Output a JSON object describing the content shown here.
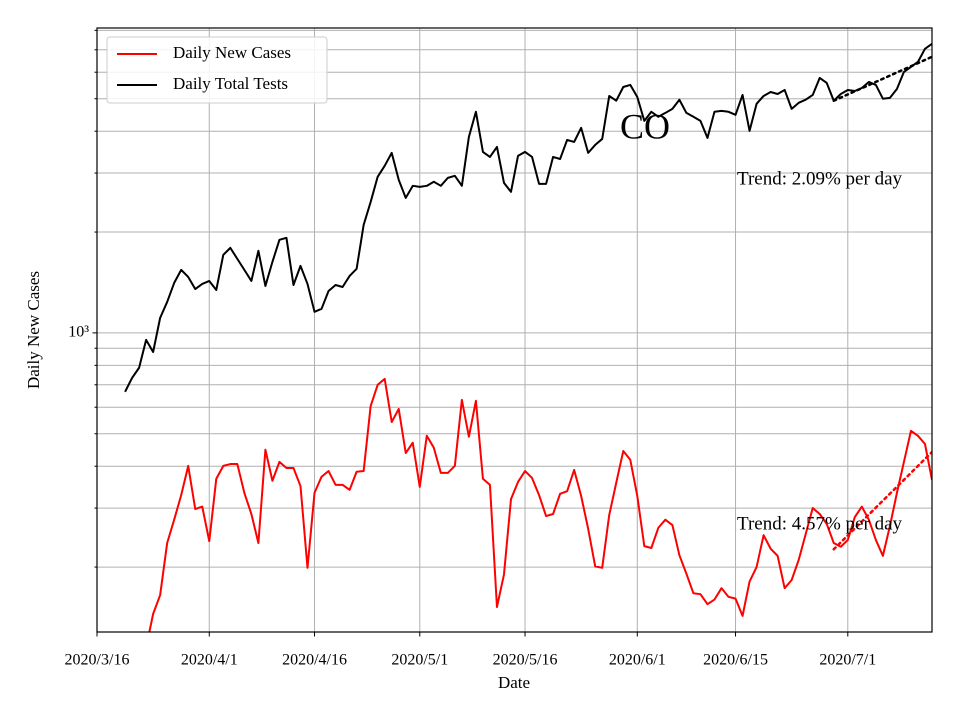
{
  "chart_data": {
    "type": "line",
    "xlabel": "Date",
    "ylabel": "Daily New Cases",
    "log_y": true,
    "grid": true,
    "legend": "upper left",
    "xlim": [
      "2020-03-16",
      "2020-07-13"
    ],
    "xticks": [
      {
        "value": "2020-03-16",
        "label": "2020/3/16"
      },
      {
        "value": "2020-04-01",
        "label": "2020/4/1"
      },
      {
        "value": "2020-04-16",
        "label": "2020/4/16"
      },
      {
        "value": "2020-05-01",
        "label": "2020/5/1"
      },
      {
        "value": "2020-05-16",
        "label": "2020/5/16"
      },
      {
        "value": "2020-06-01",
        "label": "2020/6/1"
      },
      {
        "value": "2020-06-15",
        "label": "2020/6/15"
      },
      {
        "value": "2020-07-01",
        "label": "2020/7/1"
      }
    ],
    "ylim": [
      128,
      8130
    ],
    "yticks": [
      {
        "value": 1000,
        "label": "10³"
      }
    ],
    "yminorticks": [
      200,
      300,
      400,
      500,
      600,
      700,
      800,
      900,
      2000,
      3000,
      4000,
      5000,
      6000,
      7000,
      8000
    ],
    "x": [
      "2020-03-20",
      "2020-03-21",
      "2020-03-22",
      "2020-03-23",
      "2020-03-24",
      "2020-03-25",
      "2020-03-26",
      "2020-03-27",
      "2020-03-28",
      "2020-03-29",
      "2020-03-30",
      "2020-03-31",
      "2020-04-01",
      "2020-04-02",
      "2020-04-03",
      "2020-04-04",
      "2020-04-05",
      "2020-04-06",
      "2020-04-07",
      "2020-04-08",
      "2020-04-09",
      "2020-04-10",
      "2020-04-11",
      "2020-04-12",
      "2020-04-13",
      "2020-04-14",
      "2020-04-15",
      "2020-04-16",
      "2020-04-17",
      "2020-04-18",
      "2020-04-19",
      "2020-04-20",
      "2020-04-21",
      "2020-04-22",
      "2020-04-23",
      "2020-04-24",
      "2020-04-25",
      "2020-04-26",
      "2020-04-27",
      "2020-04-28",
      "2020-04-29",
      "2020-04-30",
      "2020-05-01",
      "2020-05-02",
      "2020-05-03",
      "2020-05-04",
      "2020-05-05",
      "2020-05-06",
      "2020-05-07",
      "2020-05-08",
      "2020-05-09",
      "2020-05-10",
      "2020-05-11",
      "2020-05-12",
      "2020-05-13",
      "2020-05-14",
      "2020-05-15",
      "2020-05-16",
      "2020-05-17",
      "2020-05-18",
      "2020-05-19",
      "2020-05-20",
      "2020-05-21",
      "2020-05-22",
      "2020-05-23",
      "2020-05-24",
      "2020-05-25",
      "2020-05-26",
      "2020-05-27",
      "2020-05-28",
      "2020-05-29",
      "2020-05-30",
      "2020-05-31",
      "2020-06-01",
      "2020-06-02",
      "2020-06-03",
      "2020-06-04",
      "2020-06-05",
      "2020-06-06",
      "2020-06-07",
      "2020-06-08",
      "2020-06-09",
      "2020-06-10",
      "2020-06-11",
      "2020-06-12",
      "2020-06-13",
      "2020-06-14",
      "2020-06-15",
      "2020-06-16",
      "2020-06-17",
      "2020-06-18",
      "2020-06-19",
      "2020-06-20",
      "2020-06-21",
      "2020-06-22",
      "2020-06-23",
      "2020-06-24",
      "2020-06-25",
      "2020-06-26",
      "2020-06-27",
      "2020-06-28",
      "2020-06-29",
      "2020-06-30",
      "2020-07-01",
      "2020-07-02",
      "2020-07-03",
      "2020-07-04",
      "2020-07-05",
      "2020-07-06",
      "2020-07-07",
      "2020-07-08",
      "2020-07-09",
      "2020-07-10",
      "2020-07-11",
      "2020-07-12",
      "2020-07-13"
    ],
    "series": [
      {
        "name": "Daily New Cases",
        "color": "#ff0000",
        "values": [
          null,
          null,
          null,
          115,
          145,
          165,
          236,
          277,
          328,
          401,
          298,
          303,
          239,
          367,
          401,
          406,
          406,
          333,
          288,
          236,
          448,
          362,
          412,
          395,
          395,
          349,
          199,
          333,
          372,
          387,
          352,
          352,
          340,
          385,
          387,
          605,
          700,
          729,
          542,
          593,
          438,
          470,
          347,
          493,
          454,
          382,
          382,
          401,
          631,
          490,
          627,
          367,
          352,
          152,
          190,
          319,
          359,
          387,
          369,
          328,
          284,
          288,
          331,
          337,
          390,
          326,
          260,
          201,
          199,
          286,
          357,
          444,
          418,
          326,
          231,
          228,
          262,
          277,
          267,
          217,
          191,
          167,
          166,
          155,
          160,
          173,
          163,
          161,
          143,
          181,
          200,
          249,
          227,
          216,
          173,
          183,
          210,
          251,
          300,
          288,
          269,
          236,
          230,
          241,
          282,
          303,
          277,
          241,
          216,
          265,
          333,
          412,
          510,
          493,
          466,
          364
        ]
      },
      {
        "name": "Daily Total Tests",
        "color": "#000000",
        "values": [
          667,
          734,
          787,
          953,
          877,
          1109,
          1237,
          1410,
          1542,
          1469,
          1352,
          1400,
          1429,
          1343,
          1710,
          1794,
          1663,
          1542,
          1429,
          1758,
          1381,
          1629,
          1896,
          1922,
          1390,
          1585,
          1400,
          1156,
          1180,
          1334,
          1390,
          1371,
          1479,
          1553,
          2100,
          2460,
          2924,
          3153,
          3446,
          2864,
          2529,
          2748,
          2729,
          2748,
          2825,
          2748,
          2902,
          2943,
          2748,
          3846,
          4571,
          3470,
          3352,
          3591,
          2805,
          2636,
          3375,
          3470,
          3352,
          2786,
          2786,
          3352,
          3304,
          3767,
          3715,
          4093,
          3446,
          3640,
          3793,
          5096,
          4932,
          5420,
          5498,
          5061,
          4295,
          4571,
          4416,
          4535,
          4664,
          4966,
          4535,
          4416,
          4295,
          3819,
          4571,
          4600,
          4571,
          4477,
          5131,
          4009,
          4827,
          5096,
          5236,
          5166,
          5311,
          4664,
          4861,
          4966,
          5131,
          5768,
          5572,
          4932,
          5166,
          5311,
          5273,
          5383,
          5611,
          5498,
          5000,
          5028,
          5346,
          6012,
          6223,
          6442,
          7047,
          7295
        ]
      }
    ],
    "trends": [
      {
        "color": "#ff0000",
        "x": [
          "2020-06-29",
          "2020-07-13"
        ],
        "values": [
          226,
          441
        ]
      },
      {
        "color": "#000000",
        "x": [
          "2020-06-29",
          "2020-07-13"
        ],
        "values": [
          4932,
          6670
        ]
      }
    ],
    "annotations": [
      "CO",
      "Trend: 2.09% per day",
      "Trend: 4.57% per day"
    ]
  }
}
